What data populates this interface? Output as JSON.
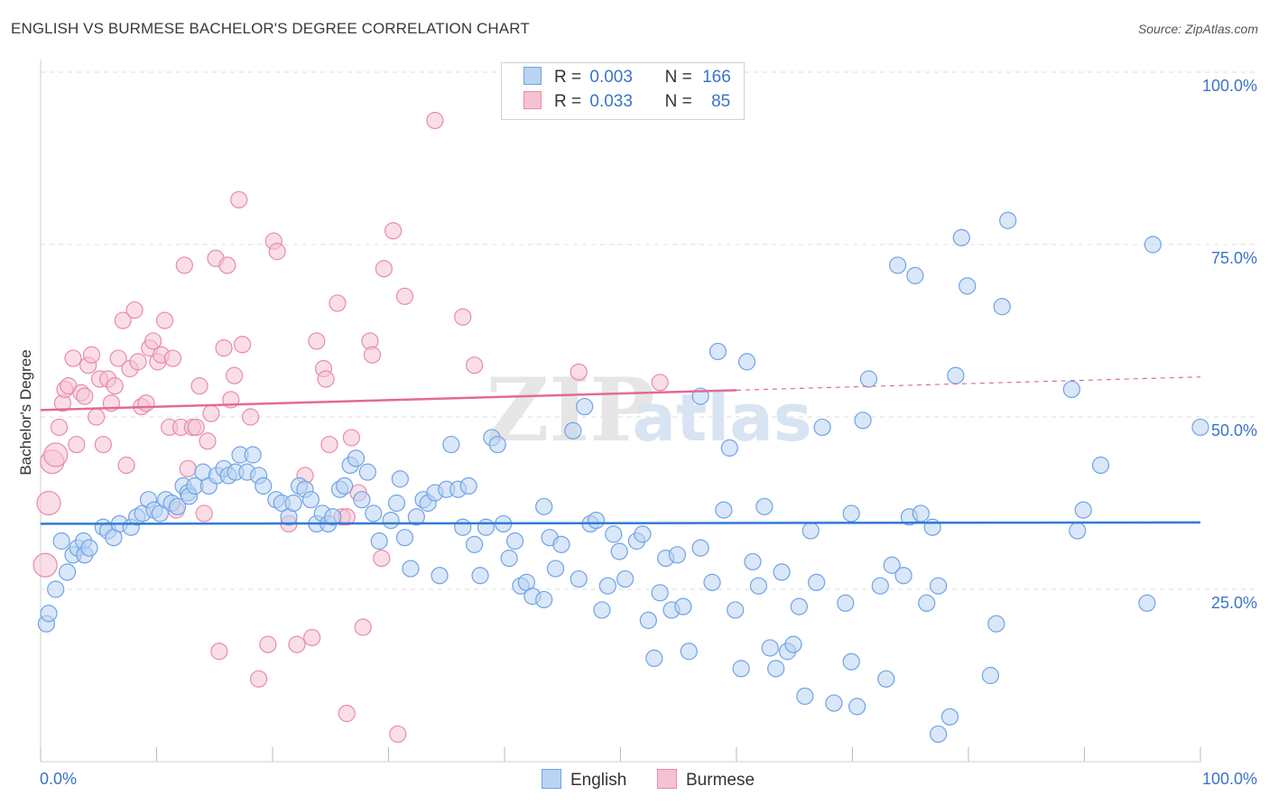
{
  "title": "ENGLISH VS BURMESE BACHELOR'S DEGREE CORRELATION CHART",
  "source": "Source: ZipAtlas.com",
  "watermark": {
    "zip": "ZIP",
    "atlas": "atlas"
  },
  "legend": {
    "rows": [
      {
        "r_label": "R =",
        "r_value": "0.003",
        "n_label": "N =",
        "n_value": "166"
      },
      {
        "r_label": "R =",
        "r_value": "0.033",
        "n_label": "N =",
        "n_value": "85"
      }
    ]
  },
  "colors": {
    "english": "#6fa3e6",
    "english_fill": "#b9d3f3",
    "english_line": "#2f7bd6",
    "burmese": "#e98aaa",
    "burmese_fill": "#f5c2d3",
    "burmese_line": "#e26a95",
    "axis_text": "#3a73c8",
    "grid": "#dddddd"
  },
  "chart_data": {
    "type": "scatter",
    "title": "ENGLISH VS BURMESE BACHELOR'S DEGREE CORRELATION CHART",
    "xlabel": "",
    "ylabel": "Bachelor's Degree",
    "xlim": [
      0,
      100
    ],
    "ylim": [
      0,
      100
    ],
    "x_tick_labels": [
      "0.0%",
      "100.0%"
    ],
    "y_ticks": [
      25,
      50,
      75,
      100
    ],
    "y_tick_labels": [
      "25.0%",
      "50.0%",
      "75.0%",
      "100.0%"
    ],
    "series": [
      {
        "name": "English",
        "trend": {
          "x": [
            0,
            100
          ],
          "y": [
            34.5,
            34.7
          ],
          "dashed_from": null
        },
        "points": [
          [
            0.5,
            20
          ],
          [
            0.7,
            21.5
          ],
          [
            1.3,
            25
          ],
          [
            1.8,
            32
          ],
          [
            2.3,
            27.5
          ],
          [
            2.8,
            30
          ],
          [
            3.2,
            31
          ],
          [
            3.7,
            32
          ],
          [
            3.8,
            30
          ],
          [
            4.2,
            31
          ],
          [
            5.4,
            34
          ],
          [
            5.8,
            33.5
          ],
          [
            6.3,
            32.5
          ],
          [
            6.8,
            34.5
          ],
          [
            7.8,
            34
          ],
          [
            8.3,
            35.5
          ],
          [
            8.8,
            36
          ],
          [
            9.3,
            38
          ],
          [
            9.8,
            36.5
          ],
          [
            10.3,
            36
          ],
          [
            10.8,
            38
          ],
          [
            11.3,
            37.5
          ],
          [
            11.8,
            37
          ],
          [
            12.3,
            40
          ],
          [
            12.7,
            39
          ],
          [
            12.8,
            38.5
          ],
          [
            13.3,
            40
          ],
          [
            14,
            42
          ],
          [
            14.5,
            40
          ],
          [
            15.2,
            41.5
          ],
          [
            15.8,
            42.5
          ],
          [
            16.2,
            41.5
          ],
          [
            16.8,
            42
          ],
          [
            17.2,
            44.5
          ],
          [
            17.8,
            42
          ],
          [
            18.3,
            44.5
          ],
          [
            18.8,
            41.5
          ],
          [
            19.2,
            40
          ],
          [
            20.3,
            38
          ],
          [
            20.8,
            37.5
          ],
          [
            21.4,
            35.5
          ],
          [
            21.8,
            37.5
          ],
          [
            22.3,
            40
          ],
          [
            22.8,
            39.5
          ],
          [
            23.3,
            38
          ],
          [
            23.8,
            34.5
          ],
          [
            24.3,
            36
          ],
          [
            24.8,
            34.5
          ],
          [
            25.2,
            35.5
          ],
          [
            25.8,
            39.5
          ],
          [
            26.2,
            40
          ],
          [
            26.7,
            43
          ],
          [
            27.2,
            44
          ],
          [
            27.7,
            38
          ],
          [
            28.2,
            42
          ],
          [
            28.7,
            36
          ],
          [
            29.2,
            32
          ],
          [
            30.2,
            35
          ],
          [
            30.7,
            37.5
          ],
          [
            31,
            41
          ],
          [
            31.4,
            32.5
          ],
          [
            31.9,
            28
          ],
          [
            32.4,
            35.5
          ],
          [
            33,
            38
          ],
          [
            33.4,
            37.5
          ],
          [
            34,
            39
          ],
          [
            34.4,
            27
          ],
          [
            35,
            39.5
          ],
          [
            35.4,
            46
          ],
          [
            36,
            39.5
          ],
          [
            36.4,
            34
          ],
          [
            36.9,
            40
          ],
          [
            37.4,
            31.5
          ],
          [
            37.9,
            27
          ],
          [
            38.4,
            34
          ],
          [
            38.9,
            47
          ],
          [
            39.4,
            46
          ],
          [
            39.9,
            34.5
          ],
          [
            40.4,
            29.5
          ],
          [
            40.9,
            32
          ],
          [
            41.4,
            25.5
          ],
          [
            41.9,
            26
          ],
          [
            42.4,
            24
          ],
          [
            43.4,
            37
          ],
          [
            43.4,
            23.5
          ],
          [
            43.9,
            32.5
          ],
          [
            44.4,
            28
          ],
          [
            44.9,
            31.5
          ],
          [
            45.9,
            48
          ],
          [
            46.4,
            26.5
          ],
          [
            46.9,
            51.5
          ],
          [
            47.4,
            34.5
          ],
          [
            47.9,
            35
          ],
          [
            48.4,
            22
          ],
          [
            48.9,
            25.5
          ],
          [
            49.4,
            33
          ],
          [
            49.9,
            30.5
          ],
          [
            50.4,
            26.5
          ],
          [
            51.4,
            32
          ],
          [
            51.9,
            33
          ],
          [
            52.4,
            20.5
          ],
          [
            52.9,
            15
          ],
          [
            53.4,
            24.5
          ],
          [
            53.9,
            29.5
          ],
          [
            54.4,
            22
          ],
          [
            54.9,
            30
          ],
          [
            55.4,
            22.5
          ],
          [
            55.9,
            16
          ],
          [
            56.9,
            53
          ],
          [
            56.9,
            31
          ],
          [
            57.9,
            26
          ],
          [
            58.4,
            59.5
          ],
          [
            58.9,
            36.5
          ],
          [
            59.4,
            45.5
          ],
          [
            59.9,
            22
          ],
          [
            60.4,
            13.5
          ],
          [
            60.9,
            58
          ],
          [
            61.4,
            29
          ],
          [
            61.9,
            25.5
          ],
          [
            62.4,
            37
          ],
          [
            62.9,
            16.5
          ],
          [
            63.4,
            13.5
          ],
          [
            63.9,
            27.5
          ],
          [
            64.4,
            16
          ],
          [
            64.9,
            17
          ],
          [
            65.4,
            22.5
          ],
          [
            65.9,
            9.5
          ],
          [
            66.4,
            33.5
          ],
          [
            66.9,
            26
          ],
          [
            67.4,
            48.5
          ],
          [
            68.4,
            8.5
          ],
          [
            69.4,
            23
          ],
          [
            69.9,
            14.5
          ],
          [
            69.9,
            36
          ],
          [
            70.4,
            8
          ],
          [
            70.9,
            49.5
          ],
          [
            71.4,
            55.5
          ],
          [
            72.4,
            25.5
          ],
          [
            72.9,
            12
          ],
          [
            73.4,
            28.5
          ],
          [
            73.9,
            72
          ],
          [
            74.4,
            27
          ],
          [
            74.9,
            35.5
          ],
          [
            75.4,
            70.5
          ],
          [
            75.9,
            36
          ],
          [
            76.4,
            23
          ],
          [
            76.9,
            34
          ],
          [
            77.4,
            4
          ],
          [
            77.4,
            25.5
          ],
          [
            78.4,
            6.5
          ],
          [
            78.9,
            56
          ],
          [
            79.4,
            76
          ],
          [
            79.9,
            69
          ],
          [
            81.9,
            12.5
          ],
          [
            82.4,
            20
          ],
          [
            82.9,
            66
          ],
          [
            83.4,
            78.5
          ],
          [
            88.9,
            54
          ],
          [
            89.4,
            33.5
          ],
          [
            89.9,
            36.5
          ],
          [
            91.4,
            43
          ],
          [
            95.4,
            23
          ],
          [
            95.9,
            75
          ],
          [
            100,
            48.5
          ]
        ]
      },
      {
        "name": "Burmese",
        "trend": {
          "x": [
            0,
            100
          ],
          "y": [
            51,
            55.8
          ],
          "dashed_from": 60
        },
        "points": [
          [
            0.4,
            28.5
          ],
          [
            0.7,
            37.5
          ],
          [
            1,
            43.5
          ],
          [
            1.3,
            44.5
          ],
          [
            1.6,
            48.5
          ],
          [
            1.9,
            52
          ],
          [
            2.1,
            54
          ],
          [
            2.4,
            54.5
          ],
          [
            2.8,
            58.5
          ],
          [
            3.1,
            46
          ],
          [
            3.5,
            53.5
          ],
          [
            3.8,
            53
          ],
          [
            4.1,
            57.5
          ],
          [
            4.4,
            59
          ],
          [
            4.8,
            50
          ],
          [
            5.1,
            55.5
          ],
          [
            5.4,
            46
          ],
          [
            5.8,
            55.5
          ],
          [
            6.1,
            52
          ],
          [
            6.4,
            54.5
          ],
          [
            6.7,
            58.5
          ],
          [
            7.1,
            64
          ],
          [
            7.4,
            43
          ],
          [
            7.7,
            57
          ],
          [
            8.1,
            65.5
          ],
          [
            8.4,
            58
          ],
          [
            8.7,
            51.5
          ],
          [
            9.1,
            52
          ],
          [
            9.4,
            60
          ],
          [
            9.7,
            61
          ],
          [
            10.1,
            58
          ],
          [
            10.4,
            59
          ],
          [
            10.7,
            64
          ],
          [
            11.1,
            48.5
          ],
          [
            11.4,
            58.5
          ],
          [
            11.7,
            36.5
          ],
          [
            12.1,
            48.5
          ],
          [
            12.4,
            72
          ],
          [
            12.7,
            42.5
          ],
          [
            13.1,
            48.5
          ],
          [
            13.4,
            48.5
          ],
          [
            13.7,
            54.5
          ],
          [
            14.1,
            36
          ],
          [
            14.4,
            46.5
          ],
          [
            14.7,
            50.5
          ],
          [
            15.1,
            73
          ],
          [
            15.4,
            16
          ],
          [
            15.8,
            60
          ],
          [
            16.1,
            72
          ],
          [
            16.4,
            52.5
          ],
          [
            16.7,
            56
          ],
          [
            17.1,
            81.5
          ],
          [
            17.4,
            60.5
          ],
          [
            18.1,
            50
          ],
          [
            18.8,
            12
          ],
          [
            19.6,
            17
          ],
          [
            20.1,
            75.5
          ],
          [
            20.4,
            74
          ],
          [
            21.4,
            34.5
          ],
          [
            22.1,
            17
          ],
          [
            22.8,
            41.5
          ],
          [
            23.4,
            18
          ],
          [
            23.8,
            61
          ],
          [
            24.4,
            57
          ],
          [
            24.6,
            55.5
          ],
          [
            24.9,
            46
          ],
          [
            25.6,
            66.5
          ],
          [
            26,
            35.5
          ],
          [
            26.4,
            7
          ],
          [
            26.4,
            35.5
          ],
          [
            26.8,
            47
          ],
          [
            27.4,
            39
          ],
          [
            27.8,
            19.5
          ],
          [
            28.4,
            61
          ],
          [
            28.6,
            59
          ],
          [
            29.4,
            29.5
          ],
          [
            29.6,
            71.5
          ],
          [
            30.4,
            77
          ],
          [
            30.8,
            4
          ],
          [
            31.4,
            67.5
          ],
          [
            34,
            93
          ],
          [
            36.4,
            64.5
          ],
          [
            37.4,
            57.5
          ],
          [
            46.4,
            56.5
          ],
          [
            53.4,
            55
          ]
        ]
      }
    ]
  },
  "bottom_legend": {
    "items": [
      {
        "label": "English"
      },
      {
        "label": "Burmese"
      }
    ]
  }
}
